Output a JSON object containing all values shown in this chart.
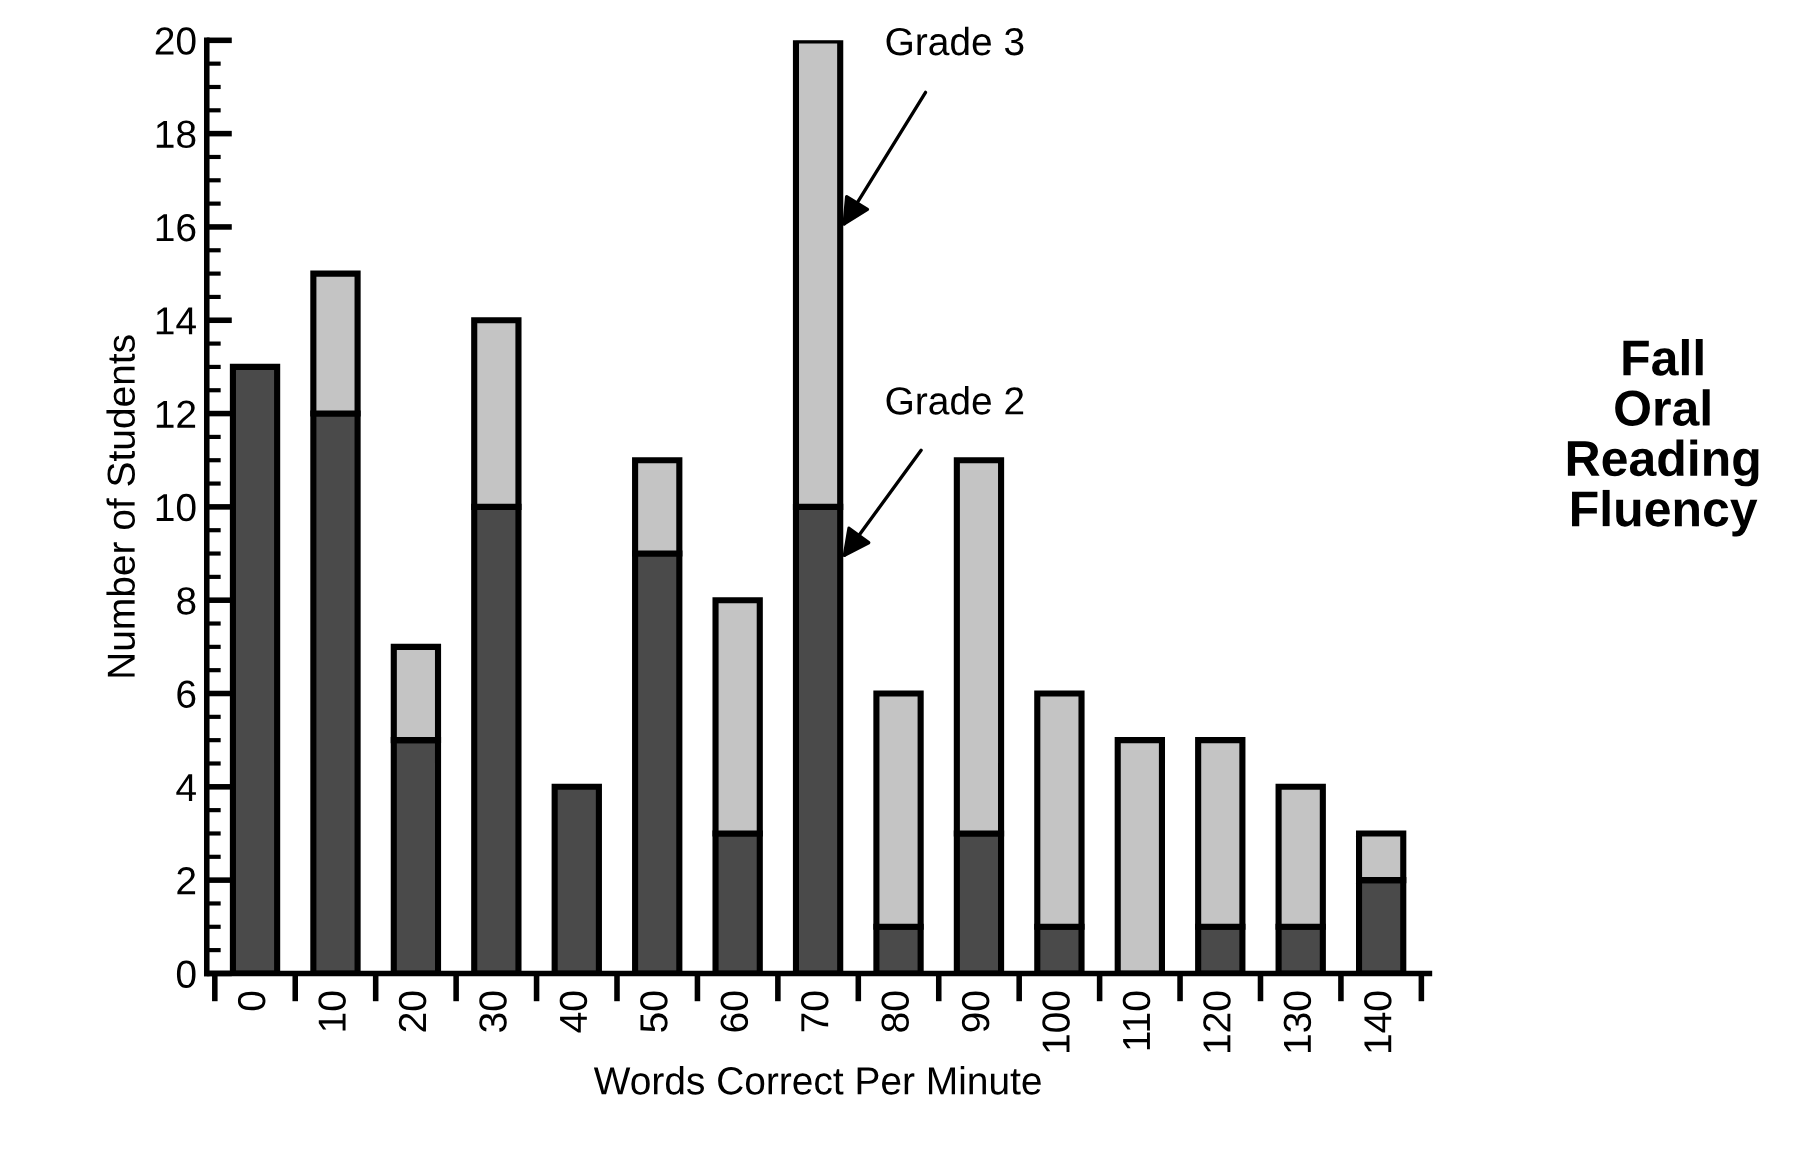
{
  "chart_data": {
    "type": "bar",
    "stacked": true,
    "title": "Fall\nOral\nReading\nFluency",
    "xlabel": "Words Correct Per Minute",
    "ylabel": "Number of Students",
    "categories": [
      "0",
      "10",
      "20",
      "30",
      "40",
      "50",
      "60",
      "70",
      "80",
      "90",
      "100",
      "110",
      "120",
      "130",
      "140"
    ],
    "series": [
      {
        "name": "Grade 2",
        "color": "#4a4a4a",
        "values": [
          13,
          12,
          5,
          10,
          4,
          9,
          3,
          10,
          1,
          3,
          1,
          0,
          1,
          1,
          2
        ]
      },
      {
        "name": "Grade 3",
        "color": "#c4c4c4",
        "values": [
          0,
          3,
          2,
          4,
          0,
          2,
          5,
          10,
          5,
          8,
          5,
          5,
          4,
          3,
          1
        ]
      }
    ],
    "ylim": [
      0,
      20
    ],
    "yticks": [
      0,
      {
        "value": 0.5,
        "label": null
      },
      {
        "value": 1,
        "label": null
      },
      {
        "value": 1.5,
        "label": null
      },
      2,
      {
        "value": 2.5,
        "label": null
      },
      {
        "value": 3,
        "label": null
      },
      {
        "value": 3.5,
        "label": null
      },
      4,
      {
        "value": 4.5,
        "label": null
      },
      {
        "value": 5,
        "label": null
      },
      {
        "value": 5.5,
        "label": null
      },
      6,
      {
        "value": 6.5,
        "label": null
      },
      {
        "value": 7,
        "label": null
      },
      {
        "value": 7.5,
        "label": null
      },
      8,
      {
        "value": 8.5,
        "label": null
      },
      {
        "value": 9,
        "label": null
      },
      {
        "value": 9.5,
        "label": null
      },
      10,
      {
        "value": 10.5,
        "label": null
      },
      {
        "value": 11,
        "label": null
      },
      {
        "value": 11.5,
        "label": null
      },
      12,
      {
        "value": 12.5,
        "label": null
      },
      {
        "value": 13,
        "label": null
      },
      {
        "value": 13.5,
        "label": null
      },
      14,
      {
        "value": 14.5,
        "label": null
      },
      {
        "value": 15,
        "label": null
      },
      {
        "value": 15.5,
        "label": null
      },
      16,
      {
        "value": 16.5,
        "label": null
      },
      {
        "value": 17,
        "label": null
      },
      {
        "value": 17.5,
        "label": null
      },
      18,
      {
        "value": 18.5,
        "label": null
      },
      {
        "value": 19,
        "label": null
      },
      {
        "value": 19.5,
        "label": null
      },
      20
    ],
    "grid": false,
    "legend": false
  }
}
